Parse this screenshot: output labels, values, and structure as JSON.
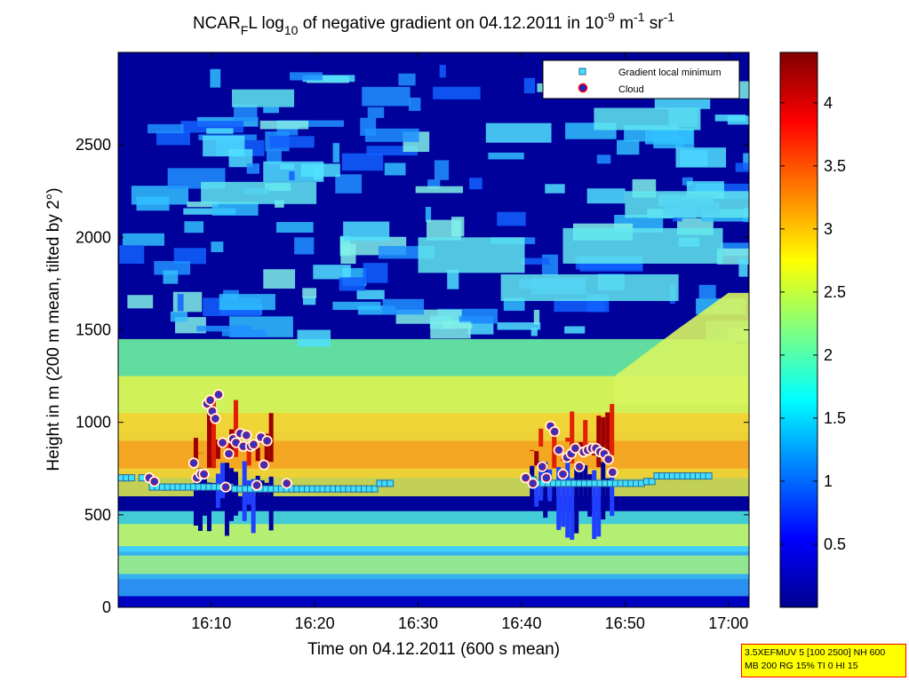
{
  "chart_data": {
    "type": "heatmap",
    "title": {
      "prefix": "NCAR",
      "sub_f": "F",
      "after_f": "L log",
      "sub_10": "10",
      "middle": " of negative gradient on 04.12.2011 in 10",
      "sup_exp1": "-9",
      "unit_m": " m",
      "sup_exp2": "-1",
      "unit_sr": " sr",
      "sup_exp3": "-1"
    },
    "xlabel": "Time on 04.12.2011 (600 s mean)",
    "ylabel": "Height in m (200 m mean, tilted by 2°)",
    "x_ticks": [
      "16:10",
      "16:20",
      "16:30",
      "16:40",
      "16:50",
      "17:00"
    ],
    "x_tick_minutes": [
      10,
      20,
      30,
      40,
      50,
      60
    ],
    "xlim_minutes": [
      1,
      62
    ],
    "y_ticks": [
      0,
      500,
      1000,
      1500,
      2000,
      2500
    ],
    "ylim": [
      0,
      3000
    ],
    "colorbar": {
      "ticks": [
        "0.5",
        "1",
        "1.5",
        "2",
        "2.5",
        "3",
        "3.5",
        "4"
      ],
      "tick_values": [
        0.5,
        1,
        1.5,
        2,
        2.5,
        3,
        3.5,
        4
      ],
      "range": [
        0,
        4.4
      ],
      "colormap": "jet"
    },
    "legend": {
      "position": "top-right",
      "entries": [
        {
          "label": "Gradient local minimum",
          "marker": "square",
          "color": "#40e0ff"
        },
        {
          "label": "Cloud",
          "marker": "circle",
          "color": "#2020c0",
          "edge": "#ff0000"
        }
      ]
    },
    "series": [
      {
        "name": "Gradient local minimum",
        "minutes": [
          1.3,
          1.8,
          2.3,
          3.3,
          4.3,
          4.8,
          5.3,
          5.8,
          6.3,
          6.8,
          7.3,
          7.8,
          8.3,
          8.8,
          9.3,
          9.8,
          10.3,
          10.8,
          11.3,
          11.8,
          12.3,
          12.8,
          13.3,
          13.8,
          14.3,
          14.8,
          15.3,
          15.8,
          16.3,
          16.8,
          17.3,
          17.8,
          18.3,
          18.8,
          19.3,
          19.8,
          20.3,
          20.8,
          21.3,
          21.8,
          22.3,
          22.8,
          23.3,
          23.8,
          24.3,
          24.8,
          25.3,
          25.8,
          26.3,
          26.8,
          27.3,
          40.6,
          41.1,
          41.6,
          42.1,
          42.6,
          43.1,
          43.6,
          44.1,
          44.6,
          45.1,
          45.6,
          46.1,
          46.6,
          47.1,
          47.6,
          48.1,
          48.6,
          49.1,
          49.6,
          50.1,
          50.6,
          51.1,
          51.6,
          52.1,
          52.6,
          53.1,
          53.6,
          54.1,
          54.6,
          55.1,
          55.6,
          56.1,
          56.6,
          57.1,
          57.6,
          58.1
        ],
        "heights": [
          700,
          700,
          700,
          700,
          650,
          650,
          650,
          650,
          650,
          650,
          650,
          650,
          650,
          650,
          650,
          650,
          650,
          650,
          650,
          650,
          640,
          640,
          640,
          640,
          640,
          640,
          640,
          640,
          640,
          640,
          640,
          640,
          640,
          640,
          640,
          640,
          640,
          640,
          640,
          640,
          640,
          640,
          640,
          640,
          640,
          640,
          640,
          640,
          670,
          670,
          670,
          700,
          690,
          670,
          670,
          670,
          670,
          670,
          670,
          670,
          670,
          670,
          670,
          670,
          670,
          670,
          670,
          670,
          670,
          670,
          670,
          670,
          670,
          670,
          680,
          680,
          710,
          710,
          710,
          710,
          710,
          710,
          710,
          710,
          710,
          710,
          710
        ]
      },
      {
        "name": "Cloud",
        "minutes": [
          4.0,
          4.5,
          8.3,
          8.6,
          9.0,
          9.3,
          9.6,
          9.9,
          10.1,
          10.4,
          10.7,
          11.1,
          11.4,
          11.7,
          12.1,
          12.4,
          12.8,
          13.1,
          13.4,
          13.8,
          14.1,
          14.4,
          14.8,
          15.1,
          15.4,
          17.3,
          40.4,
          41.1,
          42.0,
          42.4,
          42.8,
          43.2,
          43.6,
          44.0,
          44.4,
          44.8,
          45.2,
          45.6,
          46.0,
          46.4,
          46.8,
          47.2,
          47.6,
          48.0,
          48.4,
          48.8
        ],
        "heights": [
          700,
          680,
          780,
          700,
          720,
          720,
          1100,
          1120,
          1060,
          1020,
          1150,
          890,
          650,
          830,
          910,
          890,
          940,
          870,
          930,
          870,
          880,
          660,
          920,
          770,
          900,
          670,
          700,
          670,
          760,
          700,
          980,
          950,
          850,
          720,
          810,
          830,
          860,
          760,
          840,
          850,
          860,
          860,
          840,
          830,
          800,
          730
        ]
      }
    ],
    "info_box": {
      "line1": "3.5XEFMUV 5 [100 2500] NH 600",
      "line2": "MB 200 RG 15% TI 0 HI 15"
    }
  }
}
